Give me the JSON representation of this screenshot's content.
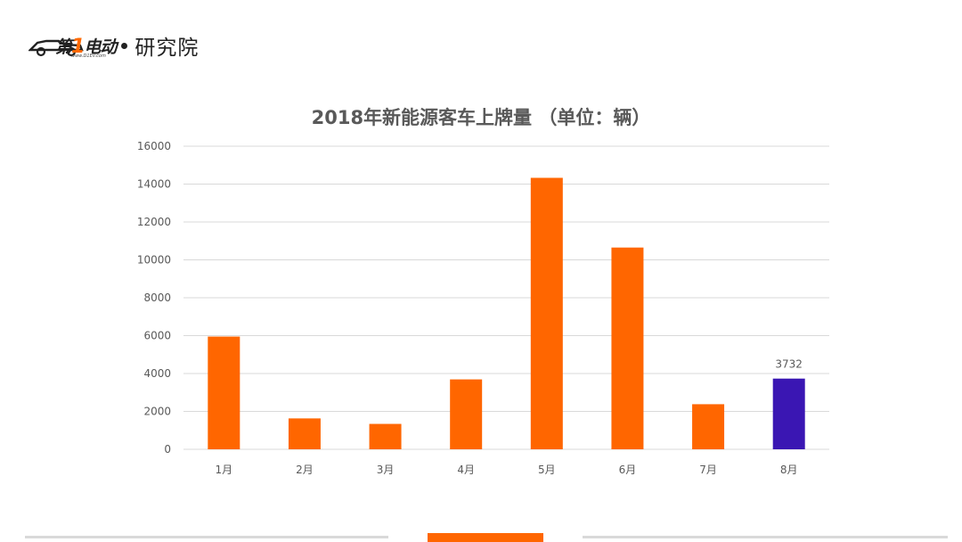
{
  "header": {
    "brand_num": "1",
    "brand_pre": "第",
    "brand_post": "电动",
    "brand_url": "www.D1EV.com",
    "institute": "研究院"
  },
  "colors": {
    "bar": "#ff6600",
    "highlight_bar": "#3a16b3",
    "grid": "#d9d9d9",
    "text": "#595959"
  },
  "chart_data": {
    "type": "bar",
    "title": "2018年新能源客车上牌量 （单位：辆）",
    "categories": [
      "1月",
      "2月",
      "3月",
      "4月",
      "5月",
      "6月",
      "7月",
      "8月"
    ],
    "values": [
      5950,
      1630,
      1340,
      3690,
      14330,
      10650,
      2380,
      3732
    ],
    "highlight_index": 7,
    "data_labels": [
      {
        "index": 7,
        "text": "3732"
      }
    ],
    "yticks": [
      0,
      2000,
      4000,
      6000,
      8000,
      10000,
      12000,
      14000,
      16000
    ],
    "ylim": [
      0,
      16000
    ],
    "grid": true,
    "legend": "none"
  }
}
